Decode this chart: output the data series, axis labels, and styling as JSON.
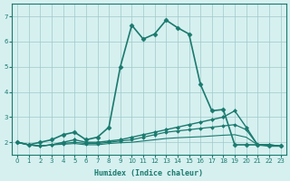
{
  "xlabel": "Humidex (Indice chaleur)",
  "x": [
    0,
    1,
    2,
    3,
    4,
    5,
    6,
    7,
    8,
    9,
    10,
    11,
    12,
    13,
    14,
    15,
    16,
    17,
    18,
    19,
    20,
    21,
    22,
    23
  ],
  "lines": [
    {
      "y": [
        2.0,
        1.9,
        2.0,
        2.1,
        2.3,
        2.4,
        2.1,
        2.2,
        2.6,
        5.0,
        6.65,
        6.1,
        6.3,
        6.85,
        6.55,
        6.3,
        4.3,
        3.25,
        3.3,
        1.9,
        1.9,
        1.9,
        1.85,
        1.85
      ],
      "color": "#1a7a6e",
      "linewidth": 1.2,
      "linestyle": "-",
      "marker": "D",
      "markersize": 2.5
    },
    {
      "y": [
        2.0,
        1.9,
        1.85,
        1.9,
        2.0,
        2.1,
        2.0,
        2.0,
        2.05,
        2.1,
        2.2,
        2.3,
        2.4,
        2.5,
        2.6,
        2.7,
        2.8,
        2.9,
        3.0,
        3.25,
        2.6,
        1.9,
        1.9,
        1.85
      ],
      "color": "#1a7a6e",
      "linewidth": 1.0,
      "linestyle": "-",
      "marker": "D",
      "markersize": 2.0
    },
    {
      "y": [
        2.0,
        1.9,
        1.85,
        1.9,
        1.95,
        2.0,
        1.95,
        1.95,
        2.0,
        2.05,
        2.1,
        2.2,
        2.3,
        2.4,
        2.45,
        2.5,
        2.55,
        2.6,
        2.65,
        2.7,
        2.5,
        1.9,
        1.9,
        1.85
      ],
      "color": "#1a7a6e",
      "linewidth": 0.9,
      "linestyle": "-",
      "marker": "D",
      "markersize": 1.8
    },
    {
      "y": [
        2.0,
        1.9,
        1.85,
        1.9,
        1.92,
        1.95,
        1.9,
        1.9,
        1.95,
        1.98,
        2.0,
        2.05,
        2.1,
        2.15,
        2.18,
        2.2,
        2.22,
        2.25,
        2.28,
        2.3,
        2.2,
        1.9,
        1.9,
        1.85
      ],
      "color": "#1a7a6e",
      "linewidth": 0.8,
      "linestyle": "-",
      "marker": null,
      "markersize": 0
    }
  ],
  "xlim": [
    -0.5,
    23.5
  ],
  "ylim": [
    1.5,
    7.5
  ],
  "yticks": [
    2,
    3,
    4,
    5,
    6,
    7
  ],
  "xticks": [
    0,
    1,
    2,
    3,
    4,
    5,
    6,
    7,
    8,
    9,
    10,
    11,
    12,
    13,
    14,
    15,
    16,
    17,
    18,
    19,
    20,
    21,
    22,
    23
  ],
  "bg_color": "#d6f0f0",
  "grid_color": "#a0c8c8",
  "line_color": "#1a7a6e"
}
